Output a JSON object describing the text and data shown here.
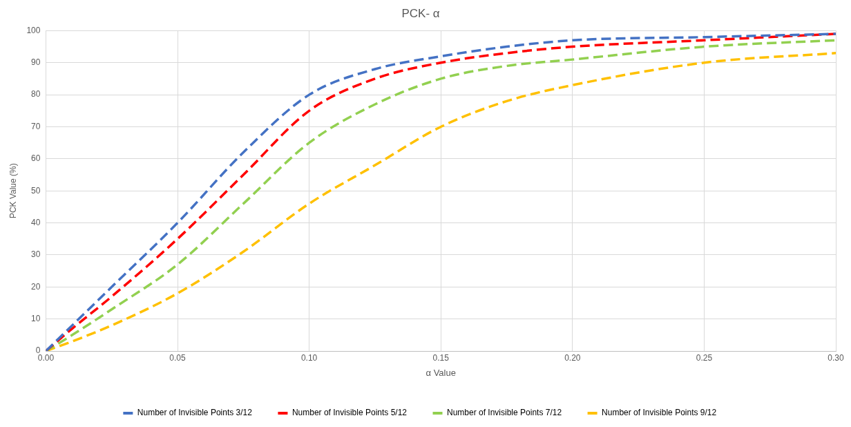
{
  "chart_data": {
    "type": "line",
    "title": "PCK- α",
    "xlabel": "α Value",
    "ylabel": "PCK Value (%)",
    "x": [
      0,
      0.01,
      0.025,
      0.05,
      0.075,
      0.1,
      0.125,
      0.15,
      0.175,
      0.2,
      0.25,
      0.3
    ],
    "series": [
      {
        "name": "Number of Invisible Points 3/12",
        "color": "#4472c4",
        "values": [
          0,
          8,
          20,
          40,
          62,
          80,
          88,
          92,
          95,
          97,
          98,
          99
        ]
      },
      {
        "name": "Number of Invisible Points 5/12",
        "color": "#ff0000",
        "values": [
          0,
          7,
          17,
          35,
          55,
          75,
          85,
          90,
          93,
          95,
          97,
          99
        ]
      },
      {
        "name": "Number of Invisible Points 7/12",
        "color": "#92d050",
        "values": [
          0,
          5,
          13,
          27,
          46,
          65,
          77,
          85,
          89,
          91,
          95,
          97
        ]
      },
      {
        "name": "Number of Invisible Points 9/12",
        "color": "#ffc000",
        "values": [
          0,
          3,
          8,
          18,
          31,
          46,
          58,
          70,
          78,
          83,
          90,
          93
        ]
      }
    ],
    "xlim": [
      0,
      0.3
    ],
    "xticks": [
      {
        "value": 0,
        "label": "0.00"
      },
      {
        "value": 0.05,
        "label": "0.05"
      },
      {
        "value": 0.1,
        "label": "0.10"
      },
      {
        "value": 0.15,
        "label": "0.15"
      },
      {
        "value": 0.2,
        "label": "0.20"
      },
      {
        "value": 0.25,
        "label": "0.25"
      },
      {
        "value": 0.3,
        "label": "0.30"
      }
    ],
    "ylim": [
      0,
      100
    ],
    "yticks": [
      0,
      10,
      20,
      30,
      40,
      50,
      60,
      70,
      80,
      90,
      100
    ],
    "grid": true,
    "legend": "bottom",
    "marker": "none",
    "line_style": "dashed"
  }
}
